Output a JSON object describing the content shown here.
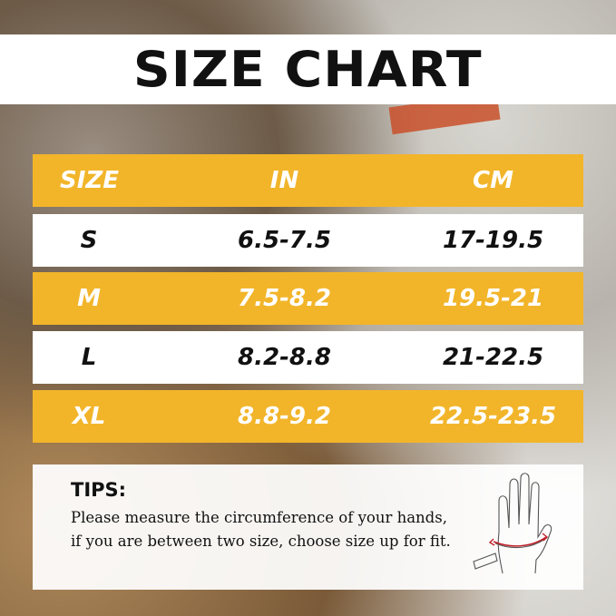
{
  "title": "SIZE CHART",
  "table": {
    "headers": [
      "SIZE",
      "IN",
      "CM"
    ],
    "rows": [
      {
        "size": "S",
        "in": "6.5-7.5",
        "cm": "17-19.5"
      },
      {
        "size": "M",
        "in": "7.5-8.2",
        "cm": "19.5-21"
      },
      {
        "size": "L",
        "in": "8.2-8.8",
        "cm": "21-22.5"
      },
      {
        "size": "XL",
        "in": "8.8-9.2",
        "cm": "22.5-23.5"
      }
    ]
  },
  "tips": {
    "title": "TIPS:",
    "text": "Please measure the circumference of your hands, if you are between two size, choose size up for fit.",
    "icon": "hand-measure-icon"
  },
  "colors": {
    "accent": "#f2b52a",
    "row_light": "#ffffff"
  }
}
